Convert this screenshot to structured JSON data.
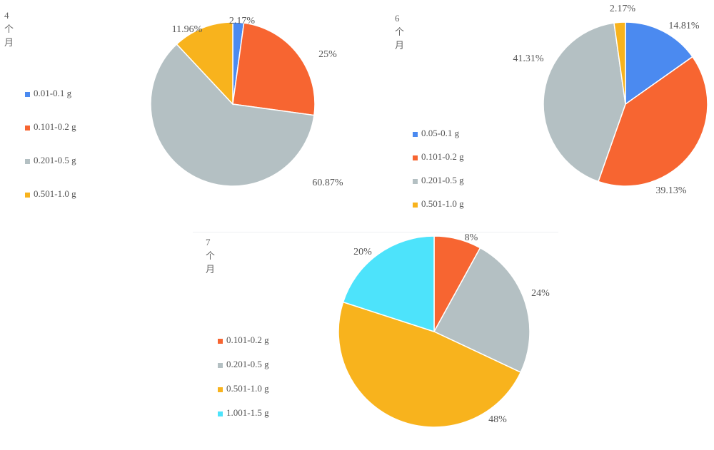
{
  "chart_data": [
    {
      "type": "pie",
      "title": "4个月",
      "categories": [
        "0.01-0.1 g",
        "0.101-0.2 g",
        "0.201-0.5 g",
        "0.501-1.0 g"
      ],
      "values": [
        2.17,
        25,
        60.87,
        11.96
      ],
      "labels": [
        "2.17%",
        "25%",
        "60.87%",
        "11.96%"
      ],
      "colors": [
        "#4b8af0",
        "#f76531",
        "#b4c0c3",
        "#f8b31d"
      ],
      "legend": "left"
    },
    {
      "type": "pie",
      "title": "6个月",
      "categories": [
        "0.05-0.1 g",
        "0.101-0.2 g",
        "0.201-0.5 g",
        "0.501-1.0 g"
      ],
      "values": [
        14.81,
        39.13,
        41.31,
        2.17
      ],
      "labels": [
        "14.81%",
        "39.13%",
        "41.31%",
        "2.17%"
      ],
      "colors": [
        "#4b8af0",
        "#f76531",
        "#b4c0c3",
        "#f8b31d"
      ],
      "legend": "left"
    },
    {
      "type": "pie",
      "title": "7个月",
      "categories": [
        "0.101-0.2 g",
        "0.201-0.5 g",
        "0.501-1.0 g",
        "1.001-1.5 g"
      ],
      "values": [
        8,
        24,
        48,
        20
      ],
      "labels": [
        "8%",
        "24%",
        "48%",
        "20%"
      ],
      "colors": [
        "#f76531",
        "#b4c0c3",
        "#f8b31d",
        "#4de3fb"
      ],
      "legend": "left"
    }
  ]
}
